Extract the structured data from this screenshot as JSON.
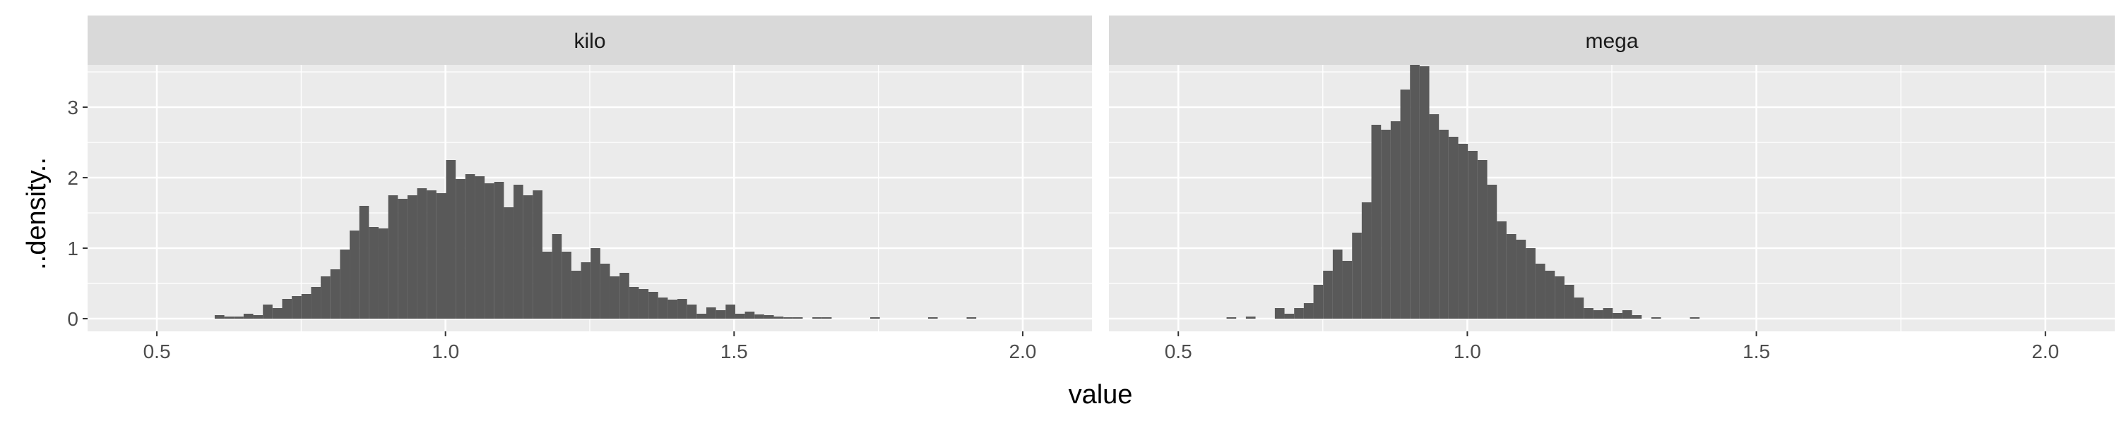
{
  "chart_data": {
    "type": "histogram",
    "xlabel": "value",
    "ylabel": "..density..",
    "xlim": [
      0.38,
      2.12
    ],
    "ylim": [
      -0.18,
      3.6
    ],
    "x_ticks": [
      0.5,
      1.0,
      1.5,
      2.0
    ],
    "x_tick_labels": [
      "0.5",
      "1.0",
      "1.5",
      "2.0"
    ],
    "y_ticks": [
      0,
      1,
      2,
      3
    ],
    "y_tick_labels": [
      "0",
      "1",
      "2",
      "3"
    ],
    "bin_start": 0.5,
    "bin_width": 0.0167,
    "grid": true,
    "panels": [
      {
        "strip": "kilo",
        "densities": [
          0,
          0,
          0,
          0,
          0,
          0,
          0.05,
          0.03,
          0.03,
          0.07,
          0.05,
          0.2,
          0.15,
          0.28,
          0.32,
          0.35,
          0.45,
          0.6,
          0.7,
          0.98,
          1.25,
          1.6,
          1.3,
          1.28,
          1.75,
          1.7,
          1.75,
          1.85,
          1.82,
          1.78,
          2.25,
          1.98,
          2.05,
          2.02,
          1.92,
          1.94,
          1.58,
          1.9,
          1.75,
          1.82,
          0.95,
          1.2,
          0.95,
          0.68,
          0.8,
          1.0,
          0.78,
          0.6,
          0.65,
          0.45,
          0.42,
          0.38,
          0.3,
          0.27,
          0.28,
          0.2,
          0.07,
          0.16,
          0.12,
          0.2,
          0.07,
          0.1,
          0.06,
          0.05,
          0.03,
          0.02,
          0.02,
          0,
          0.02,
          0.02,
          0,
          0,
          0,
          0,
          0.02,
          0,
          0,
          0,
          0,
          0,
          0.02,
          0,
          0,
          0,
          0.02,
          0,
          0,
          0,
          0,
          0,
          0
        ]
      },
      {
        "strip": "mega",
        "densities": [
          0,
          0,
          0,
          0,
          0,
          0.02,
          0,
          0.03,
          0,
          0,
          0.15,
          0.07,
          0.15,
          0.22,
          0.48,
          0.68,
          0.98,
          0.82,
          1.22,
          1.65,
          2.75,
          2.68,
          2.8,
          3.25,
          3.6,
          3.58,
          2.9,
          2.68,
          2.58,
          2.48,
          2.38,
          2.25,
          1.9,
          1.38,
          1.2,
          1.12,
          1.0,
          0.78,
          0.68,
          0.6,
          0.48,
          0.3,
          0.15,
          0.12,
          0.15,
          0.08,
          0.12,
          0.05,
          0,
          0.02,
          0,
          0,
          0,
          0.02,
          0,
          0,
          0,
          0,
          0,
          0,
          0,
          0,
          0,
          0,
          0,
          0,
          0,
          0,
          0,
          0,
          0,
          0,
          0,
          0,
          0,
          0,
          0,
          0,
          0,
          0,
          0,
          0,
          0,
          0,
          0,
          0,
          0,
          0,
          0,
          0,
          0
        ]
      }
    ]
  },
  "colors": {
    "panel_background": "#ebebeb",
    "grid_major": "#ffffff",
    "bar_fill": "#595959",
    "strip_background": "#d9d9d9",
    "tick_text": "#4d4d4d"
  }
}
